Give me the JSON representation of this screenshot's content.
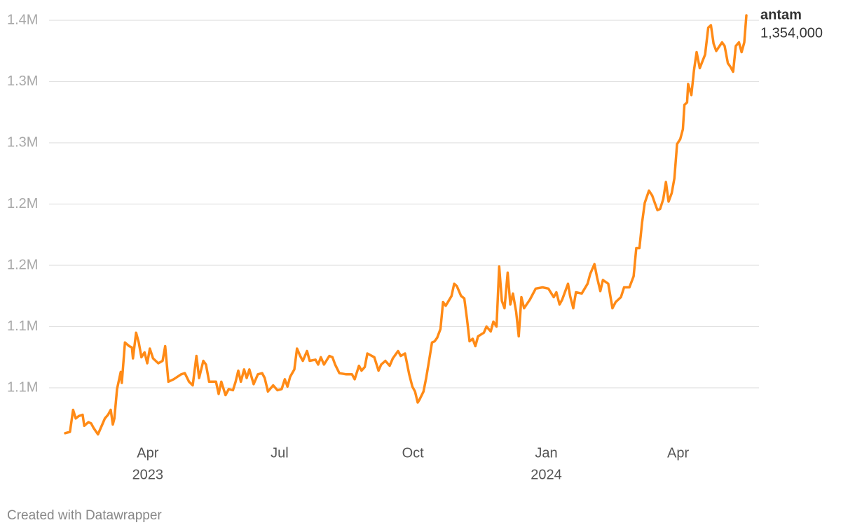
{
  "chart_data": {
    "type": "line",
    "source": "Created with Datawrapper",
    "x": [
      2023.091,
      2023.1,
      2023.106,
      2023.111,
      2023.117,
      2023.124,
      2023.127,
      2023.135,
      2023.14,
      2023.145,
      2023.153,
      2023.161,
      2023.166,
      2023.172,
      2023.177,
      2023.181,
      2023.184,
      2023.189,
      2023.196,
      2023.198,
      2023.204,
      2023.212,
      2023.217,
      2023.219,
      2023.225,
      2023.23,
      2023.235,
      2023.241,
      2023.246,
      2023.251,
      2023.257,
      2023.267,
      2023.275,
      2023.28,
      2023.286,
      2023.296,
      2023.31,
      2023.317,
      2023.325,
      2023.332,
      2023.339,
      2023.344,
      2023.352,
      2023.357,
      2023.363,
      2023.376,
      2023.381,
      2023.386,
      2023.394,
      2023.4,
      2023.408,
      2023.413,
      2023.418,
      2023.423,
      2023.429,
      2023.434,
      2023.439,
      2023.447,
      2023.455,
      2023.463,
      2023.468,
      2023.474,
      2023.484,
      2023.492,
      2023.5,
      2023.506,
      2023.511,
      2023.516,
      2023.524,
      2023.529,
      2023.535,
      2023.54,
      2023.548,
      2023.553,
      2023.564,
      2023.569,
      2023.574,
      2023.58,
      2023.59,
      2023.596,
      2023.601,
      2023.609,
      2023.622,
      2023.633,
      2023.638,
      2023.646,
      2023.651,
      2023.657,
      2023.662,
      2023.675,
      2023.683,
      2023.688,
      2023.696,
      2023.704,
      2023.71,
      2023.72,
      2023.725,
      2023.733,
      2023.741,
      2023.747,
      2023.752,
      2023.757,
      2023.76,
      2023.768,
      2023.773,
      2023.778,
      2023.784,
      2023.789,
      2023.794,
      2023.8,
      2023.805,
      2023.81,
      2023.821,
      2023.826,
      2023.831,
      2023.839,
      2023.845,
      2023.85,
      2023.855,
      2023.861,
      2023.866,
      2023.871,
      2023.882,
      2023.887,
      2023.895,
      2023.9,
      2023.906,
      2023.911,
      2023.916,
      2023.921,
      2023.927,
      2023.932,
      2023.937,
      2023.943,
      2023.948,
      2023.953,
      2023.958,
      2023.969,
      2023.98,
      2023.993,
      2024.004,
      2024.014,
      2024.019,
      2024.025,
      2024.03,
      2024.041,
      2024.045,
      2024.051,
      2024.056,
      2024.067,
      2024.078,
      2024.083,
      2024.091,
      2024.096,
      2024.102,
      2024.107,
      2024.117,
      2024.125,
      2024.131,
      2024.141,
      2024.147,
      2024.157,
      2024.165,
      2024.17,
      2024.176,
      2024.181,
      2024.186,
      2024.194,
      2024.2,
      2024.205,
      2024.21,
      2024.215,
      2024.221,
      2024.226,
      2024.231,
      2024.237,
      2024.242,
      2024.247,
      2024.253,
      2024.258,
      2024.261,
      2024.266,
      2024.268,
      2024.274,
      2024.279,
      2024.284,
      2024.29,
      2024.3,
      2024.306,
      2024.311,
      2024.316,
      2024.321,
      2024.332,
      2024.337,
      2024.343,
      2024.348,
      2024.353,
      2024.358,
      2024.364,
      2024.369,
      2024.374,
      2024.378
    ],
    "series": [
      {
        "name": "antam",
        "color": "#ff8a16",
        "last_value_label": "1,354,000",
        "values": [
          1013000,
          1014000,
          1032000,
          1025000,
          1027000,
          1028000,
          1019000,
          1022000,
          1021000,
          1017000,
          1012000,
          1020000,
          1025000,
          1028000,
          1032000,
          1020000,
          1025000,
          1049000,
          1063000,
          1054000,
          1087000,
          1084000,
          1083000,
          1074000,
          1095000,
          1087000,
          1075000,
          1079000,
          1070000,
          1082000,
          1074000,
          1070000,
          1072000,
          1084000,
          1055000,
          1057000,
          1061000,
          1062000,
          1055000,
          1052000,
          1076000,
          1058000,
          1072000,
          1069000,
          1055000,
          1055000,
          1045000,
          1055000,
          1044000,
          1049000,
          1048000,
          1055000,
          1064000,
          1055000,
          1065000,
          1058000,
          1065000,
          1053000,
          1061000,
          1062000,
          1058000,
          1047000,
          1052000,
          1048000,
          1049000,
          1057000,
          1051000,
          1059000,
          1065000,
          1082000,
          1076000,
          1072000,
          1080000,
          1072000,
          1073000,
          1069000,
          1075000,
          1069000,
          1076000,
          1075000,
          1069000,
          1062000,
          1061000,
          1061000,
          1057000,
          1068000,
          1064000,
          1067000,
          1078000,
          1075000,
          1064000,
          1069000,
          1072000,
          1068000,
          1074000,
          1080000,
          1076000,
          1078000,
          1061000,
          1051000,
          1047000,
          1038000,
          1040000,
          1047000,
          1058000,
          1071000,
          1087000,
          1088000,
          1091000,
          1098000,
          1120000,
          1117000,
          1125000,
          1135000,
          1133000,
          1125000,
          1123000,
          1107000,
          1088000,
          1090000,
          1084000,
          1092000,
          1095000,
          1100000,
          1096000,
          1104000,
          1100000,
          1149000,
          1121000,
          1115000,
          1144000,
          1118000,
          1127000,
          1112000,
          1092000,
          1124000,
          1115000,
          1122000,
          1131000,
          1132000,
          1131000,
          1124000,
          1128000,
          1118000,
          1122000,
          1135000,
          1125000,
          1115000,
          1128000,
          1127000,
          1135000,
          1143000,
          1151000,
          1140000,
          1129000,
          1138000,
          1135000,
          1115000,
          1120000,
          1124000,
          1132000,
          1132000,
          1141000,
          1164000,
          1164000,
          1185000,
          1201000,
          1211000,
          1207000,
          1201000,
          1195000,
          1196000,
          1204000,
          1218000,
          1202000,
          1209000,
          1221000,
          1249000,
          1253000,
          1261000,
          1281000,
          1283000,
          1298000,
          1289000,
          1309000,
          1324000,
          1311000,
          1322000,
          1344000,
          1346000,
          1331000,
          1325000,
          1332000,
          1329000,
          1315000,
          1312000,
          1308000,
          1329000,
          1332000,
          1324000,
          1332000,
          1354000
        ]
      }
    ],
    "xlim": [
      2023.091,
      2024.378
    ],
    "xticks": [
      {
        "value": 2023.247,
        "label": "Apr"
      },
      {
        "value": 2023.496,
        "label": "Jul"
      },
      {
        "value": 2023.748,
        "label": "Oct"
      },
      {
        "value": 2024.0,
        "label": "Jan"
      },
      {
        "value": 2024.249,
        "label": "Apr"
      }
    ],
    "xticks_year": [
      {
        "value": 2023.247,
        "label": "2023"
      },
      {
        "value": 2024.0,
        "label": "2024"
      }
    ],
    "ylim": [
      1010000,
      1361000
    ],
    "yticks": [
      {
        "value": 1050000,
        "label": "1.1M"
      },
      {
        "value": 1100000,
        "label": "1.1M"
      },
      {
        "value": 1150000,
        "label": "1.2M"
      },
      {
        "value": 1200000,
        "label": "1.2M"
      },
      {
        "value": 1250000,
        "label": "1.3M"
      },
      {
        "value": 1300000,
        "label": "1.3M"
      },
      {
        "value": 1350000,
        "label": "1.4M"
      }
    ],
    "grid": true
  }
}
